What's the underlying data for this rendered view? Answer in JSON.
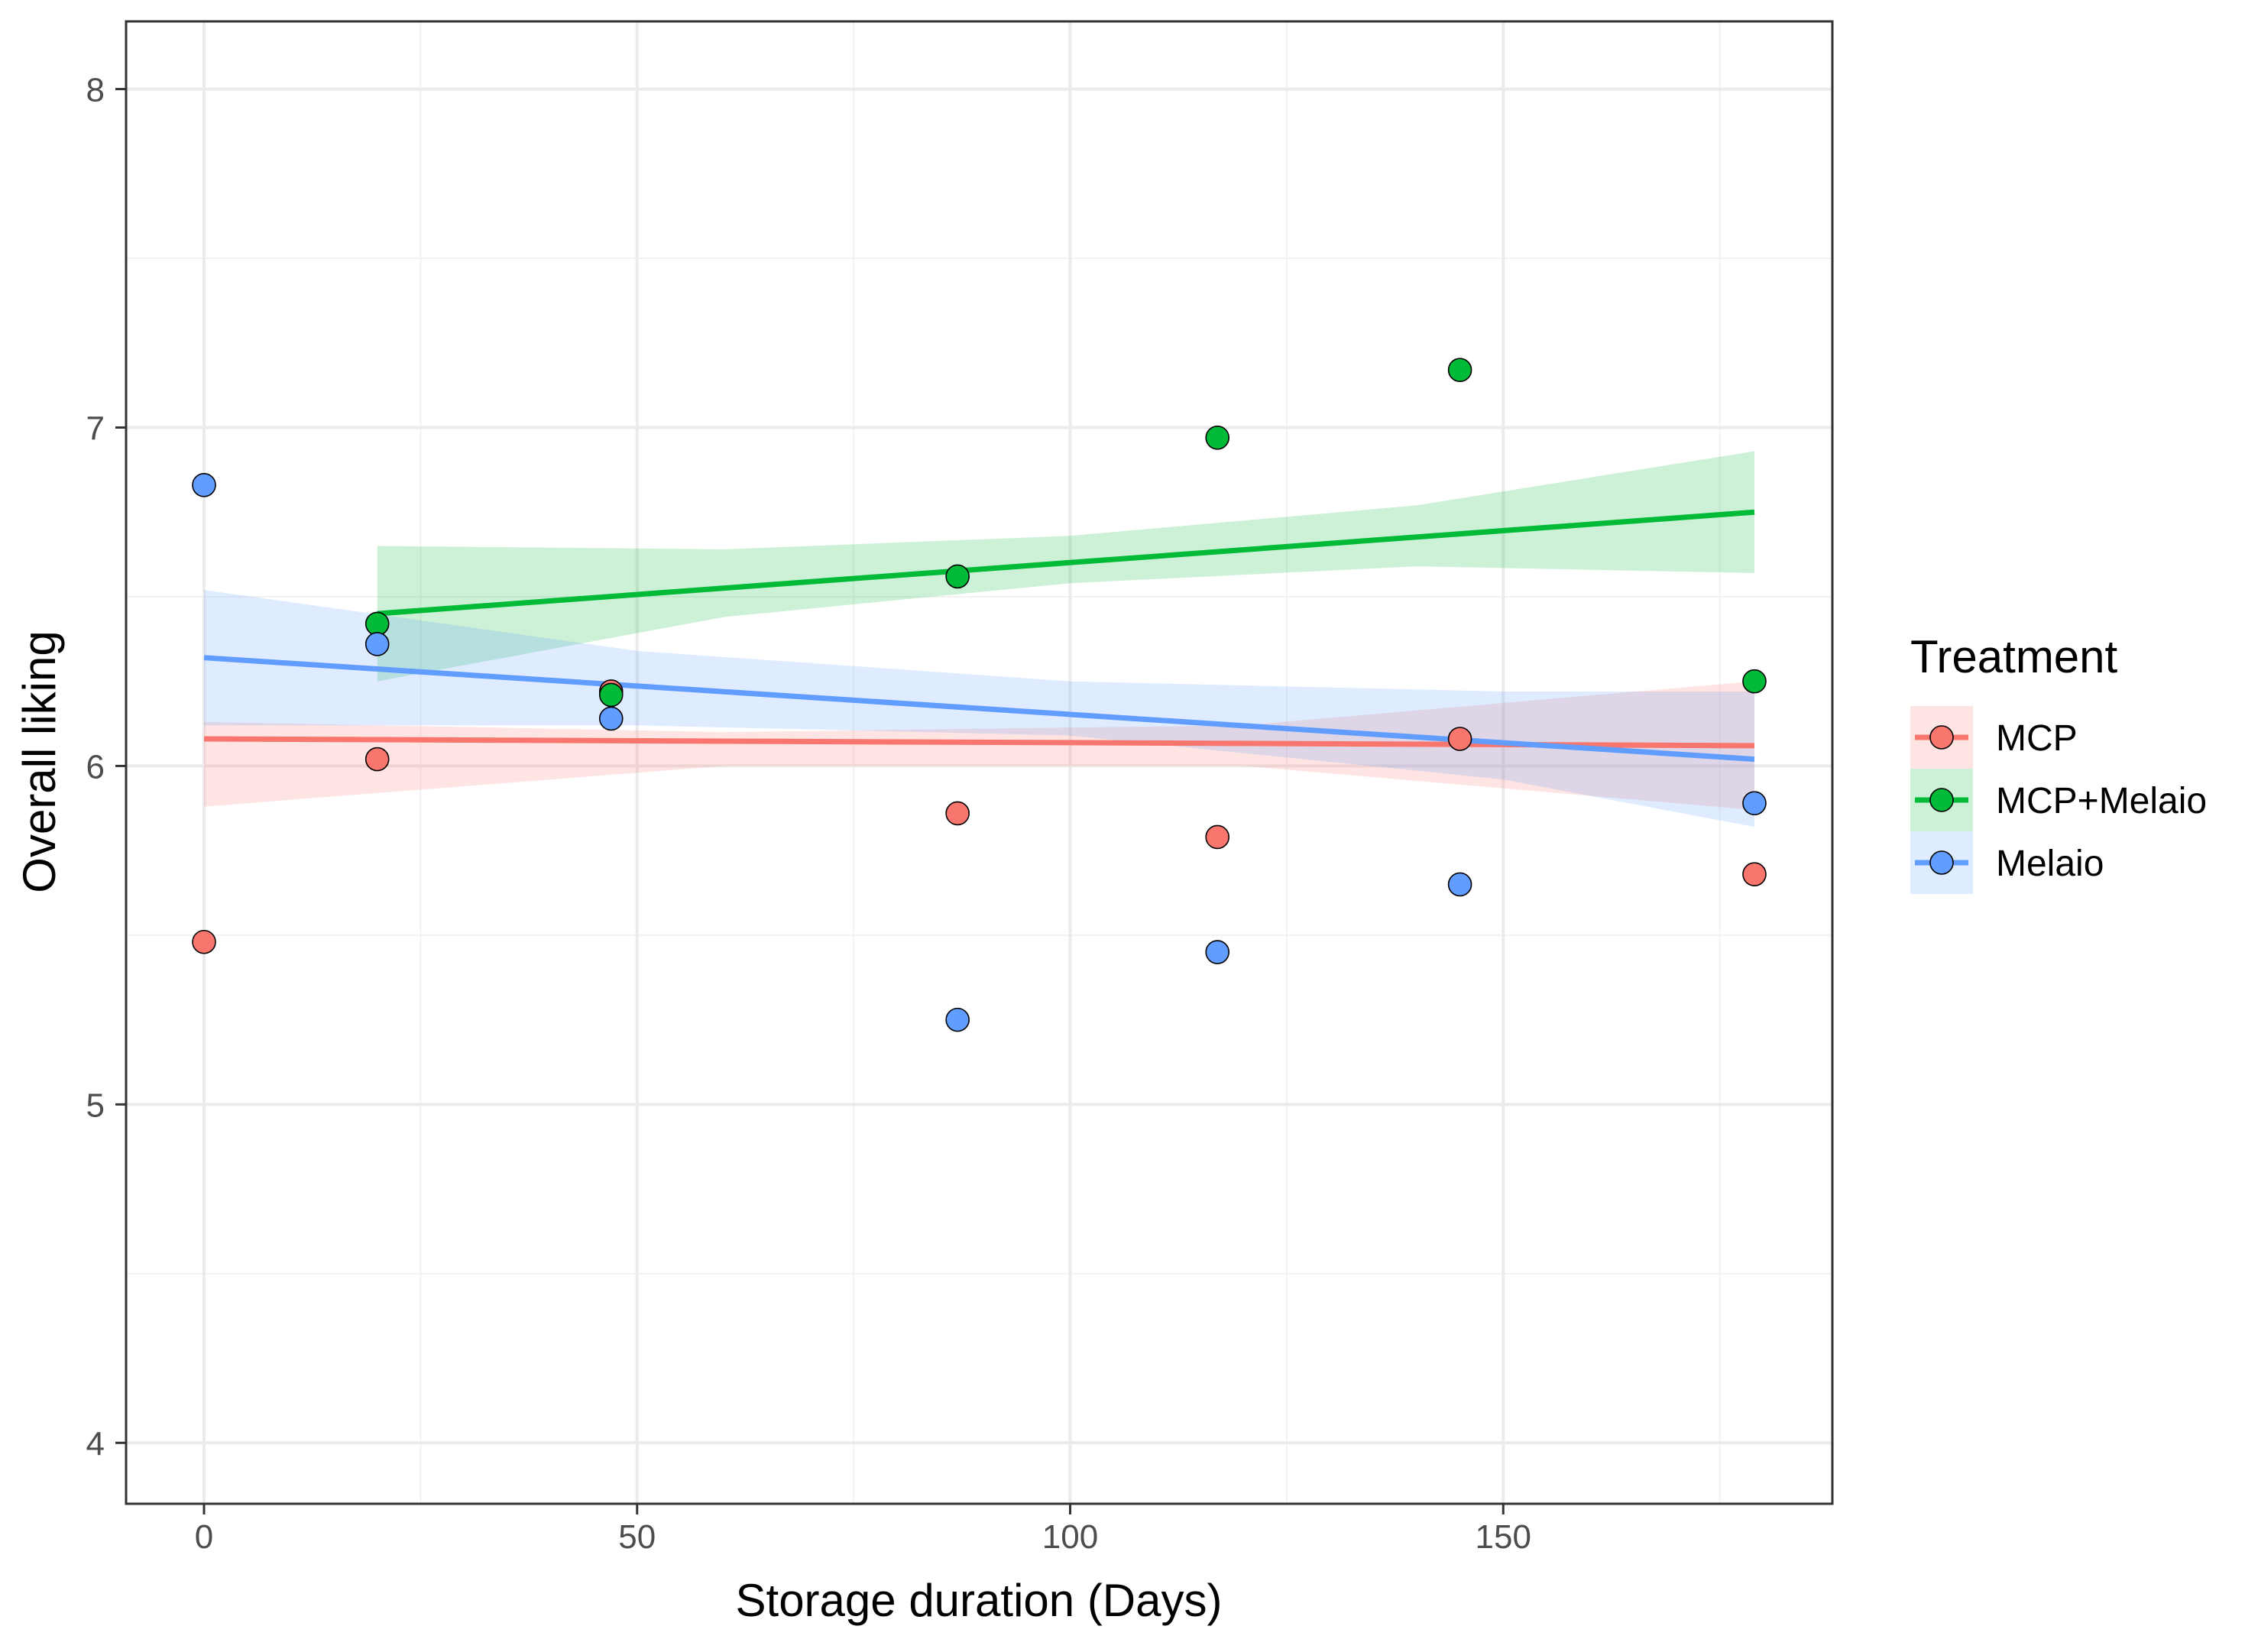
{
  "chart_data": {
    "type": "scatter",
    "title": "",
    "xlabel": "Storage duration (Days)",
    "ylabel": "Overall liking",
    "xlim": [
      -9,
      188
    ],
    "ylim": [
      3.82,
      8.2
    ],
    "x_ticks": [
      0,
      50,
      100,
      150
    ],
    "x_tick_labels": [
      "0",
      "50",
      "100",
      "150"
    ],
    "y_ticks": [
      4,
      5,
      6,
      7,
      8
    ],
    "y_tick_labels": [
      "4",
      "5",
      "6",
      "7",
      "8"
    ],
    "grid": true,
    "legend": {
      "title": "Treatment",
      "position": "right",
      "entries": [
        "MCP",
        "MCP+Melaio",
        "Melaio"
      ]
    },
    "series": [
      {
        "name": "MCP",
        "color": "#f8766d",
        "x": [
          0,
          20,
          47,
          87,
          117,
          145,
          179
        ],
        "y": [
          5.48,
          6.02,
          6.22,
          5.86,
          5.79,
          6.08,
          5.68
        ],
        "fit": {
          "x": [
            0,
            179
          ],
          "y": [
            6.08,
            6.06
          ]
        },
        "ci": {
          "x": [
            0,
            60,
            120,
            179
          ],
          "upper": [
            6.13,
            6.1,
            6.12,
            6.25
          ],
          "lower": [
            5.88,
            6.0,
            6.0,
            5.87
          ]
        }
      },
      {
        "name": "MCP+Melaio",
        "color": "#00ba38",
        "x": [
          20,
          47,
          87,
          117,
          145,
          179
        ],
        "y": [
          6.42,
          6.21,
          6.56,
          6.97,
          7.17,
          6.25
        ],
        "fit": {
          "x": [
            20,
            179
          ],
          "y": [
            6.45,
            6.75
          ]
        },
        "ci": {
          "x": [
            20,
            60,
            100,
            140,
            179
          ],
          "upper": [
            6.65,
            6.64,
            6.68,
            6.77,
            6.93
          ],
          "lower": [
            6.25,
            6.44,
            6.54,
            6.59,
            6.57
          ]
        }
      },
      {
        "name": "Melaio",
        "color": "#619cff",
        "x": [
          0,
          20,
          47,
          87,
          117,
          145,
          179
        ],
        "y": [
          6.83,
          6.36,
          6.14,
          5.25,
          5.45,
          5.65,
          5.89
        ],
        "fit": {
          "x": [
            0,
            179
          ],
          "y": [
            6.32,
            6.02
          ]
        },
        "ci": {
          "x": [
            0,
            50,
            100,
            150,
            179
          ],
          "upper": [
            6.52,
            6.34,
            6.25,
            6.22,
            6.22
          ],
          "lower": [
            6.12,
            6.12,
            6.09,
            5.96,
            5.82
          ]
        }
      }
    ]
  }
}
